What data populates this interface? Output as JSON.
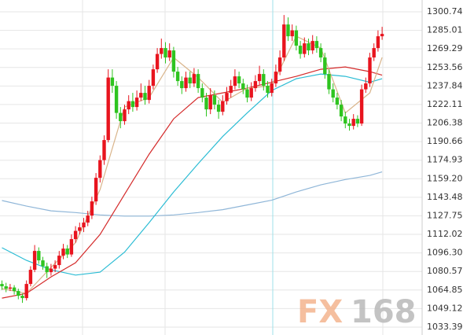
{
  "chart_data": {
    "type": "candlestick",
    "ylim": [
      1026.72,
      1310.74
    ],
    "yticks": [
      1300.74,
      1285.01,
      1269.29,
      1253.56,
      1237.84,
      1222.11,
      1206.38,
      1190.66,
      1174.93,
      {
        "value": 1159.2,
        "label": "1159.20"
      },
      1143.48,
      1127.75,
      1112.02,
      {
        "value": 1096.3,
        "label": "1096.30"
      },
      1080.57,
      1064.85,
      1049.12,
      1033.39
    ],
    "grid": true,
    "up_color": "#e8141e",
    "down_color": "#2ec41f",
    "open": [
      1070,
      1068,
      1066,
      1067,
      1064,
      1060,
      1058,
      1070,
      1082,
      1098,
      1090,
      1085,
      1080,
      1083,
      1086,
      1094,
      1100,
      1095,
      1108,
      1115,
      1118,
      1122,
      1128,
      1140,
      1160,
      1175,
      1192,
      1245,
      1238,
      1215,
      1208,
      1218,
      1225,
      1220,
      1228,
      1232,
      1226,
      1238,
      1252,
      1265,
      1270,
      1262,
      1268,
      1250,
      1242,
      1236,
      1245,
      1240,
      1248,
      1236,
      1228,
      1218,
      1230,
      1222,
      1216,
      1225,
      1232,
      1238,
      1246,
      1240,
      1235,
      1228,
      1236,
      1242,
      1248,
      1238,
      1232,
      1240,
      1250,
      1262,
      1290,
      1280,
      1285,
      1272,
      1265,
      1274,
      1268,
      1276,
      1270,
      1262,
      1248,
      1235,
      1228,
      1222,
      1212,
      1206,
      1204,
      1210,
      1206,
      1235,
      1240,
      1262,
      1270,
      1280
    ],
    "high": [
      1073,
      1071,
      1070,
      1069,
      1066,
      1062,
      1073,
      1085,
      1103,
      1101,
      1093,
      1088,
      1087,
      1090,
      1098,
      1104,
      1103,
      1112,
      1119,
      1122,
      1126,
      1132,
      1144,
      1164,
      1179,
      1196,
      1252,
      1252,
      1242,
      1220,
      1222,
      1230,
      1232,
      1234,
      1240,
      1238,
      1243,
      1256,
      1270,
      1278,
      1275,
      1274,
      1271,
      1254,
      1246,
      1250,
      1250,
      1253,
      1252,
      1240,
      1232,
      1236,
      1234,
      1226,
      1230,
      1237,
      1243,
      1252,
      1250,
      1244,
      1239,
      1241,
      1247,
      1255,
      1252,
      1242,
      1244,
      1256,
      1268,
      1298,
      1296,
      1290,
      1289,
      1276,
      1279,
      1278,
      1281,
      1280,
      1274,
      1266,
      1252,
      1240,
      1232,
      1226,
      1216,
      1210,
      1214,
      1213,
      1239,
      1245,
      1266,
      1274,
      1285,
      1288
    ],
    "low": [
      1065,
      1063,
      1064,
      1061,
      1057,
      1054,
      1056,
      1068,
      1080,
      1087,
      1082,
      1075,
      1077,
      1080,
      1083,
      1091,
      1092,
      1093,
      1105,
      1112,
      1114,
      1119,
      1125,
      1137,
      1156,
      1171,
      1190,
      1232,
      1210,
      1202,
      1205,
      1214,
      1216,
      1217,
      1225,
      1222,
      1223,
      1235,
      1249,
      1261,
      1257,
      1259,
      1245,
      1238,
      1231,
      1233,
      1236,
      1237,
      1232,
      1224,
      1212,
      1214,
      1218,
      1210,
      1213,
      1222,
      1228,
      1235,
      1236,
      1231,
      1224,
      1225,
      1233,
      1239,
      1234,
      1228,
      1229,
      1237,
      1247,
      1259,
      1276,
      1276,
      1268,
      1261,
      1262,
      1264,
      1265,
      1266,
      1258,
      1244,
      1231,
      1224,
      1218,
      1208,
      1202,
      1200,
      1201,
      1203,
      1204,
      1232,
      1237,
      1259,
      1267,
      1277
    ],
    "close": [
      1068,
      1066,
      1067,
      1064,
      1060,
      1058,
      1070,
      1082,
      1098,
      1090,
      1085,
      1080,
      1083,
      1086,
      1094,
      1100,
      1095,
      1108,
      1115,
      1118,
      1122,
      1128,
      1140,
      1160,
      1175,
      1192,
      1245,
      1238,
      1215,
      1208,
      1218,
      1225,
      1220,
      1228,
      1232,
      1226,
      1238,
      1252,
      1265,
      1270,
      1262,
      1268,
      1250,
      1242,
      1236,
      1245,
      1240,
      1248,
      1236,
      1228,
      1218,
      1230,
      1222,
      1216,
      1225,
      1232,
      1238,
      1246,
      1240,
      1235,
      1228,
      1236,
      1242,
      1248,
      1238,
      1232,
      1240,
      1250,
      1262,
      1290,
      1280,
      1285,
      1272,
      1265,
      1274,
      1268,
      1276,
      1270,
      1262,
      1248,
      1235,
      1228,
      1222,
      1212,
      1206,
      1204,
      1210,
      1206,
      1235,
      1240,
      1262,
      1270,
      1280,
      1282
    ],
    "lines": [
      {
        "color": "#8fb6d8",
        "x": [
          0,
          6,
          12,
          18,
          24,
          30,
          36,
          42,
          48,
          54,
          60,
          66,
          72,
          78,
          84,
          90,
          93
        ],
        "values": [
          1140.7,
          1136,
          1132,
          1130.5,
          1128.5,
          1127.5,
          1127.5,
          1128.5,
          1130.5,
          1133,
          1137,
          1141,
          1148,
          1154,
          1158.5,
          1162,
          1165
        ]
      },
      {
        "color": "#2bbcd4",
        "x": [
          0,
          6,
          12,
          18,
          24,
          30,
          36,
          42,
          48,
          54,
          60,
          66,
          72,
          78,
          84,
          90,
          93
        ],
        "values": [
          1100.7,
          1090,
          1082,
          1077.5,
          1080,
          1097,
          1122,
          1148,
          1172,
          1195,
          1215,
          1234,
          1244,
          1248,
          1246,
          1241,
          1244
        ]
      },
      {
        "color": "#d42a2a",
        "x": [
          0,
          6,
          12,
          18,
          24,
          30,
          36,
          42,
          48,
          54,
          60,
          66,
          72,
          78,
          84,
          90,
          93
        ],
        "values": [
          1058,
          1062,
          1076,
          1088,
          1112,
          1146,
          1180,
          1210,
          1228,
          1232,
          1236,
          1241,
          1246,
          1252,
          1254,
          1250,
          1247
        ]
      },
      {
        "color": "#d9b48a",
        "x": [
          0,
          6,
          12,
          18,
          24,
          30,
          36,
          42,
          48,
          54,
          60,
          66,
          72,
          78,
          84,
          90,
          93
        ],
        "values": [
          1066,
          1062,
          1084,
          1105,
          1150,
          1220,
          1228,
          1262,
          1245,
          1224,
          1236,
          1238,
          1280,
          1270,
          1215,
          1232,
          1262
        ]
      }
    ]
  },
  "watermark": {
    "left": "FX",
    "right": "168"
  }
}
